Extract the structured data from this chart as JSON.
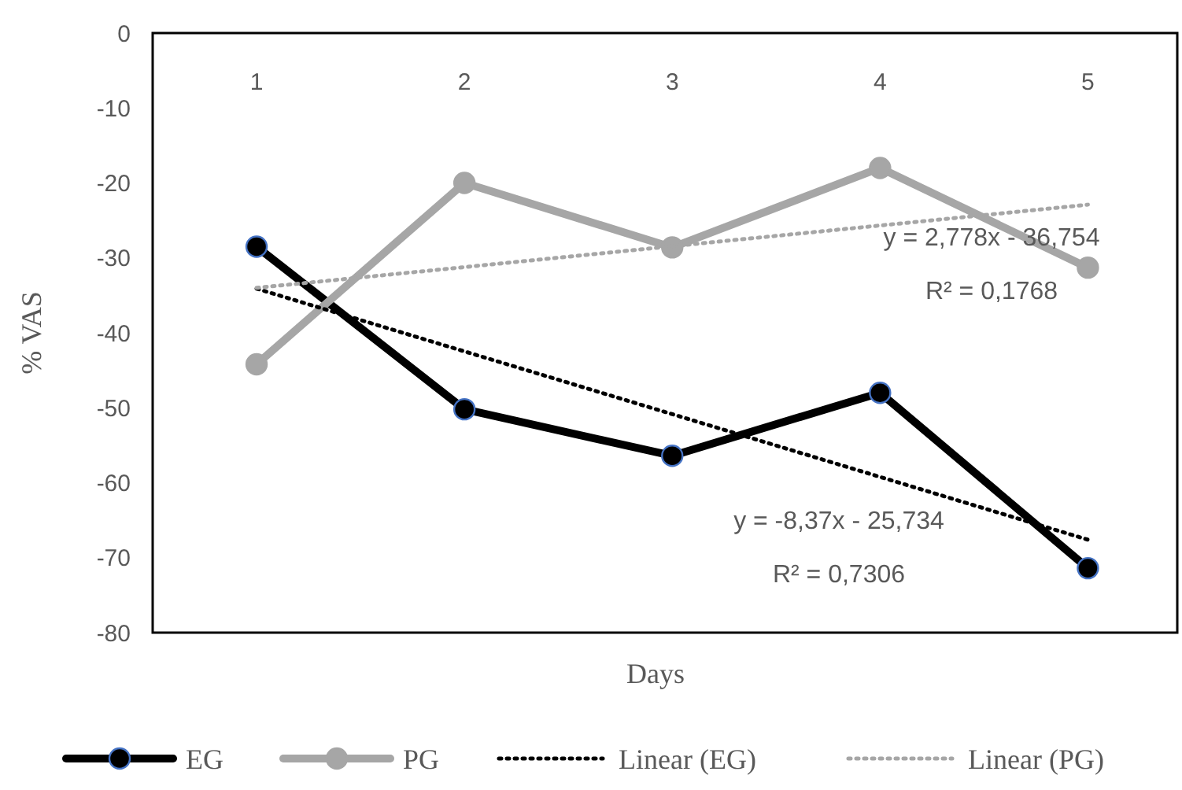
{
  "chart_data": {
    "type": "line",
    "xlabel": "Days",
    "ylabel": "% VAS",
    "categories": [
      "1",
      "2",
      "3",
      "4",
      "5"
    ],
    "ylim": [
      -80,
      0
    ],
    "yticks": [
      0,
      -10,
      -20,
      -30,
      -40,
      -50,
      -60,
      -70,
      -80
    ],
    "grid": false,
    "legend": "bottom",
    "marker": "circle",
    "series": [
      {
        "name": "EG",
        "color": "#000000",
        "values": [
          -28.5,
          -50.2,
          -56.4,
          -48.0,
          -71.4
        ]
      },
      {
        "name": "PG",
        "color": "#a6a6a6",
        "values": [
          -44.2,
          -20.0,
          -28.6,
          -18.0,
          -31.3
        ]
      },
      {
        "name": "Linear (EG)",
        "color": "#000000",
        "x": [
          "1",
          "5"
        ],
        "values": [
          -34.1,
          -67.6
        ],
        "line_style": "dotted",
        "marker": "none"
      },
      {
        "name": "Linear (PG)",
        "color": "#a6a6a6",
        "x": [
          "1",
          "5"
        ],
        "values": [
          -34.0,
          -22.9
        ],
        "line_style": "dotted",
        "marker": "none"
      }
    ],
    "annotations": [
      "y = 2,778x - 36,754",
      "R² = 0,1768",
      "y = -8,37x - 25,734",
      "R² = 0,7306"
    ]
  }
}
